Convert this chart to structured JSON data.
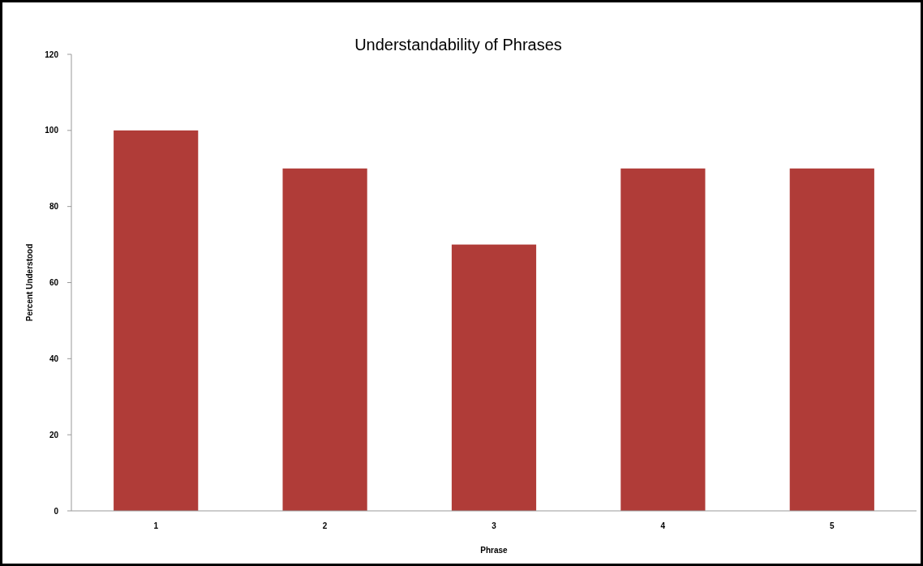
{
  "chart_data": {
    "type": "bar",
    "title": "Understandability of Phrases",
    "xlabel": "Phrase",
    "ylabel": "Percent Understood",
    "categories": [
      "1",
      "2",
      "3",
      "4",
      "5"
    ],
    "series": [
      {
        "color": "#b03c38",
        "values": [
          100,
          90,
          70,
          90,
          90
        ]
      }
    ],
    "ylim": [
      0,
      120
    ],
    "yticks": [
      0,
      20,
      40,
      60,
      80,
      100,
      120
    ],
    "grid": false
  }
}
